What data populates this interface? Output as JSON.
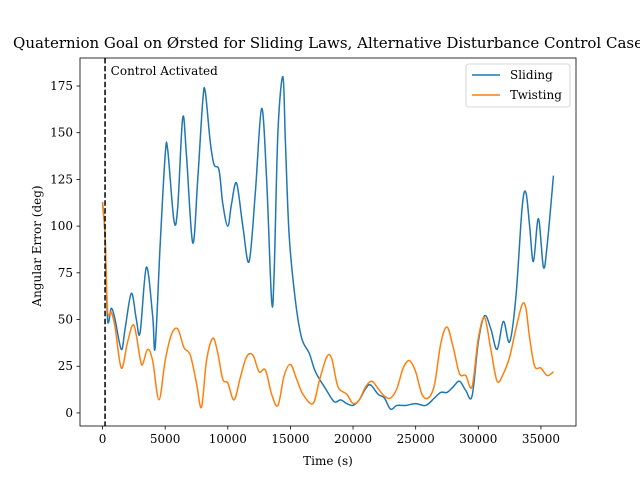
{
  "chart_data": {
    "type": "line",
    "title": "Quaternion Goal on Ørsted for Sliding Laws, Alternative Disturbance Control Case",
    "xlabel": "Time (s)",
    "ylabel": "Angular Error (deg)",
    "xlim": [
      -1800,
      37800
    ],
    "ylim": [
      -7,
      190
    ],
    "xticks": [
      0,
      5000,
      10000,
      15000,
      20000,
      25000,
      30000,
      35000
    ],
    "yticks": [
      0,
      25,
      50,
      75,
      100,
      125,
      150,
      175
    ],
    "grid": false,
    "legend_position": "top-right",
    "vline": {
      "x": 200,
      "style": "dashed",
      "color": "#000000"
    },
    "annotation": {
      "text": "Control Activated",
      "x": 650,
      "y": 183
    },
    "series": [
      {
        "name": "Sliding",
        "color": "#1f77b4",
        "points": [
          [
            0,
            112
          ],
          [
            200,
            95
          ],
          [
            400,
            50
          ],
          [
            700,
            56
          ],
          [
            1000,
            50
          ],
          [
            1500,
            34
          ],
          [
            1800,
            45
          ],
          [
            2300,
            64
          ],
          [
            2700,
            50
          ],
          [
            3000,
            43
          ],
          [
            3500,
            78
          ],
          [
            4000,
            52
          ],
          [
            4200,
            35
          ],
          [
            4600,
            90
          ],
          [
            5000,
            138
          ],
          [
            5200,
            141
          ],
          [
            5700,
            103
          ],
          [
            6000,
            110
          ],
          [
            6400,
            158
          ],
          [
            6700,
            138
          ],
          [
            7200,
            91
          ],
          [
            7600,
            125
          ],
          [
            8000,
            167
          ],
          [
            8200,
            172
          ],
          [
            8600,
            145
          ],
          [
            8900,
            133
          ],
          [
            9300,
            130
          ],
          [
            9600,
            112
          ],
          [
            10000,
            100
          ],
          [
            10300,
            112
          ],
          [
            10700,
            123
          ],
          [
            11200,
            100
          ],
          [
            11700,
            81
          ],
          [
            12200,
            118
          ],
          [
            12700,
            163
          ],
          [
            13100,
            125
          ],
          [
            13500,
            60
          ],
          [
            13700,
            75
          ],
          [
            14000,
            150
          ],
          [
            14400,
            180
          ],
          [
            14600,
            145
          ],
          [
            14900,
            95
          ],
          [
            15400,
            60
          ],
          [
            15900,
            40
          ],
          [
            16500,
            32
          ],
          [
            17000,
            22
          ],
          [
            17800,
            13
          ],
          [
            18500,
            6
          ],
          [
            19000,
            7
          ],
          [
            19500,
            5
          ],
          [
            20000,
            4
          ],
          [
            20500,
            7
          ],
          [
            21000,
            13
          ],
          [
            21400,
            15
          ],
          [
            22000,
            10
          ],
          [
            22500,
            8
          ],
          [
            23000,
            2
          ],
          [
            23500,
            4
          ],
          [
            24200,
            4
          ],
          [
            25000,
            5
          ],
          [
            25800,
            4
          ],
          [
            26500,
            8
          ],
          [
            27000,
            11
          ],
          [
            27500,
            11
          ],
          [
            28000,
            14
          ],
          [
            28500,
            17
          ],
          [
            29000,
            12
          ],
          [
            29500,
            9
          ],
          [
            30000,
            38
          ],
          [
            30500,
            52
          ],
          [
            31000,
            45
          ],
          [
            31500,
            34
          ],
          [
            32000,
            49
          ],
          [
            32500,
            38
          ],
          [
            33000,
            62
          ],
          [
            33500,
            110
          ],
          [
            33800,
            118
          ],
          [
            34100,
            100
          ],
          [
            34400,
            81
          ],
          [
            34800,
            104
          ],
          [
            35200,
            78
          ],
          [
            35500,
            90
          ],
          [
            36000,
            127
          ]
        ]
      },
      {
        "name": "Twisting",
        "color": "#ff7f0e",
        "points": [
          [
            0,
            113
          ],
          [
            200,
            95
          ],
          [
            400,
            55
          ],
          [
            700,
            54
          ],
          [
            1000,
            46
          ],
          [
            1500,
            24
          ],
          [
            2000,
            38
          ],
          [
            2500,
            47
          ],
          [
            3000,
            29
          ],
          [
            3200,
            26
          ],
          [
            3600,
            34
          ],
          [
            4000,
            28
          ],
          [
            4500,
            7
          ],
          [
            5000,
            28
          ],
          [
            5500,
            42
          ],
          [
            6000,
            45
          ],
          [
            6500,
            35
          ],
          [
            7000,
            31
          ],
          [
            7500,
            16
          ],
          [
            7900,
            3
          ],
          [
            8300,
            28
          ],
          [
            8800,
            40
          ],
          [
            9200,
            32
          ],
          [
            9600,
            18
          ],
          [
            10000,
            16
          ],
          [
            10500,
            7
          ],
          [
            11000,
            19
          ],
          [
            11500,
            30
          ],
          [
            12000,
            31
          ],
          [
            12500,
            22
          ],
          [
            13000,
            23
          ],
          [
            13500,
            10
          ],
          [
            14000,
            4
          ],
          [
            14500,
            20
          ],
          [
            15000,
            26
          ],
          [
            15500,
            18
          ],
          [
            16000,
            10
          ],
          [
            16800,
            5
          ],
          [
            17300,
            17
          ],
          [
            17900,
            30
          ],
          [
            18300,
            29
          ],
          [
            18800,
            14
          ],
          [
            19500,
            10
          ],
          [
            20000,
            5
          ],
          [
            20500,
            7
          ],
          [
            21000,
            14
          ],
          [
            21500,
            17
          ],
          [
            22000,
            13
          ],
          [
            22500,
            9
          ],
          [
            23000,
            8
          ],
          [
            23500,
            13
          ],
          [
            24000,
            24
          ],
          [
            24500,
            28
          ],
          [
            25000,
            22
          ],
          [
            25500,
            10
          ],
          [
            26000,
            8
          ],
          [
            26500,
            15
          ],
          [
            27000,
            37
          ],
          [
            27500,
            46
          ],
          [
            28000,
            35
          ],
          [
            28500,
            21
          ],
          [
            29000,
            20
          ],
          [
            29500,
            14
          ],
          [
            30000,
            40
          ],
          [
            30500,
            51
          ],
          [
            31000,
            34
          ],
          [
            31500,
            17
          ],
          [
            32000,
            21
          ],
          [
            32500,
            30
          ],
          [
            33000,
            45
          ],
          [
            33500,
            58
          ],
          [
            33800,
            56
          ],
          [
            34100,
            40
          ],
          [
            34500,
            25
          ],
          [
            35000,
            24
          ],
          [
            35500,
            20
          ],
          [
            36000,
            22
          ]
        ]
      }
    ]
  }
}
